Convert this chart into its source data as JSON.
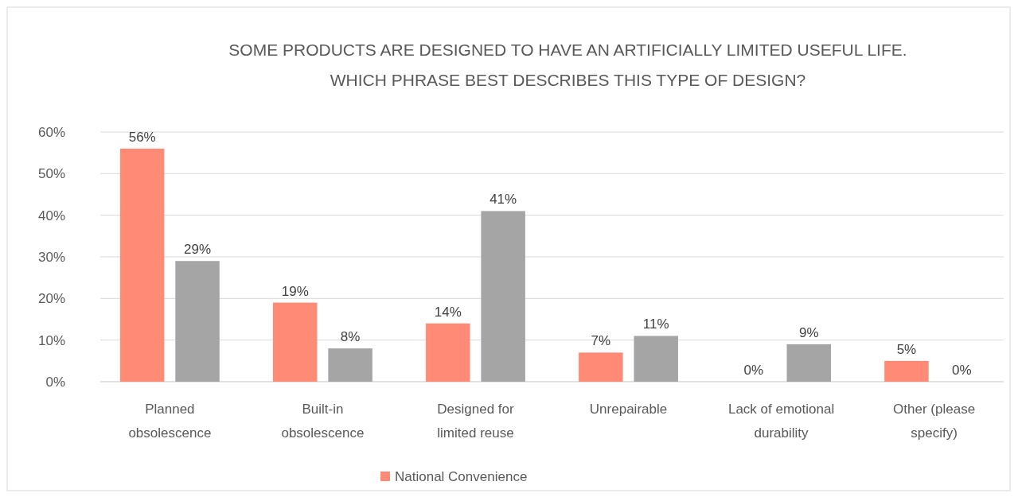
{
  "chart_data": {
    "type": "bar",
    "title": "SOME PRODUCTS ARE DESIGNED TO HAVE AN ARTIFICIALLY LIMITED USEFUL LIFE.\nWHICH PHRASE BEST DESCRIBES THIS TYPE OF DESIGN?",
    "categories": [
      "Planned obsolescence",
      "Built-in obsolescence",
      "Designed for limited reuse",
      "Unrepairable",
      "Lack of emotional durability",
      "Other (please specify)"
    ],
    "series": [
      {
        "name": "National Convenience",
        "color": "#ff8a75",
        "values": [
          56,
          19,
          14,
          7,
          0,
          5
        ]
      },
      {
        "color": "#a5a5a5",
        "values": [
          29,
          8,
          41,
          11,
          9,
          0
        ]
      }
    ],
    "value_labels": [
      [
        "56%",
        "19%",
        "14%",
        "7%",
        "0%",
        "5%"
      ],
      [
        "29%",
        "8%",
        "41%",
        "11%",
        "9%",
        "0%"
      ]
    ],
    "ylim": [
      0,
      60
    ],
    "yticks": [
      {
        "value": 0,
        "label": "0%"
      },
      {
        "value": 10,
        "label": "10%"
      },
      {
        "value": 20,
        "label": "20%"
      },
      {
        "value": 30,
        "label": "30%"
      },
      {
        "value": 40,
        "label": "40%"
      },
      {
        "value": 50,
        "label": "50%"
      },
      {
        "value": 60,
        "label": "60%"
      }
    ],
    "grid": "y",
    "legend": "bottom"
  }
}
